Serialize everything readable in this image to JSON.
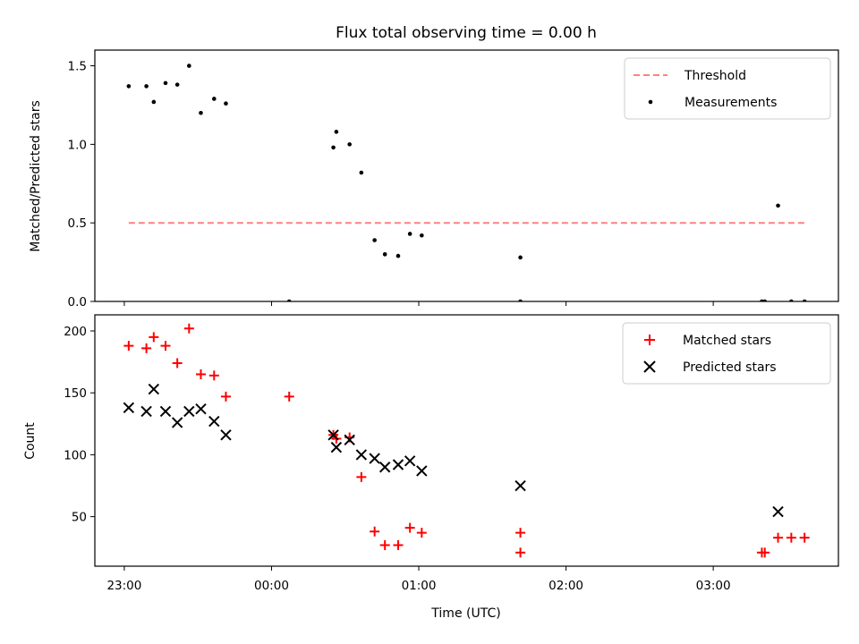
{
  "chart_data": [
    {
      "type": "scatter",
      "title": "Flux total observing time = 0.00 h",
      "xlabel": "",
      "ylabel": "Matched/Predicted stars",
      "ylim": [
        0,
        1.6
      ],
      "yticks": [
        0.0,
        0.5,
        1.0,
        1.5
      ],
      "ytick_labels": [
        "0.0",
        "0.5",
        "1.0",
        "1.5"
      ],
      "x_unit": "hours since 23:00 UTC",
      "legend_position": "upper right",
      "threshold": {
        "name": "Threshold",
        "value": 0.5,
        "x_start": 0.03,
        "x_end": 4.62,
        "color": "#ff8080"
      },
      "series": [
        {
          "name": "Measurements",
          "color": "#000000",
          "x": [
            0.03,
            0.15,
            0.2,
            0.28,
            0.36,
            0.44,
            0.52,
            0.61,
            0.69,
            1.12,
            1.42,
            1.44,
            1.53,
            1.61,
            1.7,
            1.77,
            1.86,
            1.94,
            2.02,
            2.69,
            2.69,
            4.33,
            4.35,
            4.44,
            4.53,
            4.62
          ],
          "y": [
            1.37,
            1.37,
            1.27,
            1.39,
            1.38,
            1.5,
            1.2,
            1.29,
            1.26,
            0.0,
            0.98,
            1.08,
            1.0,
            0.82,
            0.39,
            0.3,
            0.29,
            0.43,
            0.42,
            0.28,
            0.0,
            0.0,
            0.0,
            0.61,
            0.0,
            0.0
          ]
        }
      ]
    },
    {
      "type": "scatter",
      "title": "",
      "xlabel": "Time (UTC)",
      "ylabel": "Count",
      "ylim": [
        10,
        213
      ],
      "yticks": [
        50,
        100,
        150,
        200
      ],
      "ytick_labels": [
        "50",
        "100",
        "150",
        "200"
      ],
      "xlim": [
        -0.2,
        4.85
      ],
      "xticks": [
        0,
        1,
        2,
        3,
        4
      ],
      "xtick_labels": [
        "23:00",
        "00:00",
        "01:00",
        "02:00",
        "03:00"
      ],
      "x_unit": "hours since 23:00 UTC",
      "legend_position": "upper right",
      "series": [
        {
          "name": "Matched stars",
          "marker": "plus",
          "color": "#ff0000",
          "x": [
            0.03,
            0.15,
            0.2,
            0.28,
            0.36,
            0.44,
            0.52,
            0.61,
            0.69,
            1.12,
            1.42,
            1.44,
            1.53,
            1.61,
            1.7,
            1.77,
            1.86,
            1.94,
            2.02,
            2.69,
            2.69,
            4.33,
            4.35,
            4.44,
            4.53,
            4.62
          ],
          "y": [
            188,
            186,
            195,
            188,
            174,
            202,
            165,
            164,
            147,
            147,
            116,
            113,
            114,
            82,
            38,
            27,
            27,
            41,
            37,
            37,
            21,
            21,
            21,
            33,
            33,
            33
          ]
        },
        {
          "name": "Predicted stars",
          "marker": "x",
          "color": "#000000",
          "x": [
            0.03,
            0.15,
            0.2,
            0.28,
            0.36,
            0.44,
            0.52,
            0.61,
            0.69,
            1.42,
            1.44,
            1.53,
            1.61,
            1.7,
            1.77,
            1.86,
            1.94,
            2.02,
            2.69,
            4.44
          ],
          "y": [
            138,
            135,
            153,
            135,
            126,
            135,
            137,
            127,
            116,
            116,
            106,
            112,
            100,
            97,
            90,
            92,
            95,
            87,
            75,
            54
          ]
        }
      ]
    }
  ]
}
